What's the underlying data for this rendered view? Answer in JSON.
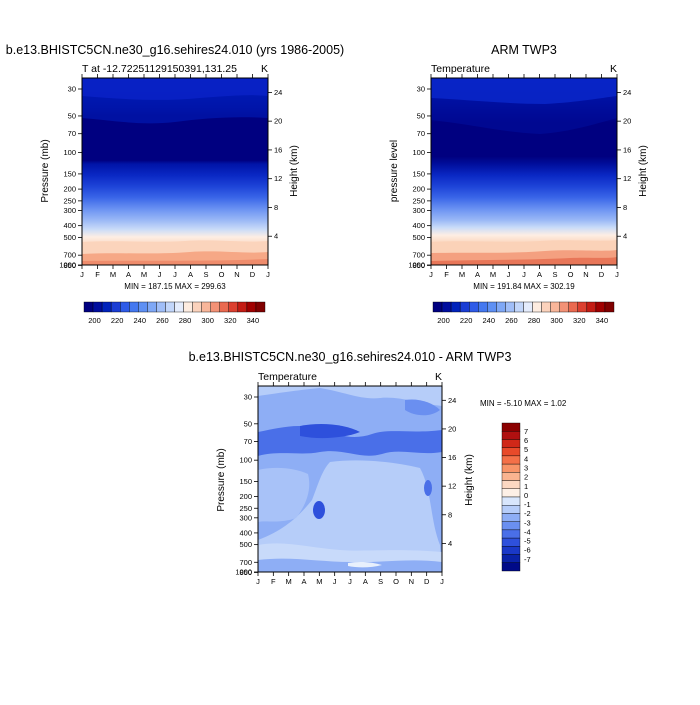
{
  "chart_data": [
    {
      "type": "heatmap",
      "title": "b.e13.BHISTC5CN.ne30_g16.sehires24.010 (yrs 1986-2005)",
      "subtitle_left": "T at -12.72251129150391,131.25",
      "subtitle_right": "K",
      "xlabel": "",
      "ylabel": "Pressure (mb)",
      "ylabel_right": "Height (km)",
      "x_ticks": [
        "J",
        "F",
        "M",
        "A",
        "M",
        "J",
        "J",
        "A",
        "S",
        "O",
        "N",
        "D",
        "J"
      ],
      "y_ticks": [
        "30",
        "50",
        "70",
        "100",
        "150",
        "200",
        "250",
        "300",
        "400",
        "500",
        "700",
        "850",
        "1000"
      ],
      "y_ticks_right": [
        "24",
        "20",
        "16",
        "12",
        "8",
        "4"
      ],
      "stats": "MIN = 187.15 MAX = 299.63",
      "colorbar": {
        "orientation": "horizontal",
        "labels": [
          "200",
          "220",
          "240",
          "260",
          "280",
          "300",
          "320",
          "340"
        ],
        "colors": [
          "#000080",
          "#000d9e",
          "#0022bb",
          "#1a3dd4",
          "#2e5be8",
          "#4478f0",
          "#5e90f4",
          "#7fa8f6",
          "#a0bef8",
          "#c2d6fa",
          "#e4ecfc",
          "#fdece0",
          "#fbd2bc",
          "#f8b69a",
          "#f39276",
          "#ea6a50",
          "#dc4030",
          "#c41c14",
          "#a00000",
          "#800000"
        ]
      }
    },
    {
      "type": "heatmap",
      "title": "ARM TWP3",
      "subtitle_left": "Temperature",
      "subtitle_right": "K",
      "xlabel": "",
      "ylabel": "pressure level",
      "ylabel_right": "Height (km)",
      "x_ticks": [
        "J",
        "F",
        "M",
        "A",
        "M",
        "J",
        "J",
        "A",
        "S",
        "O",
        "N",
        "D",
        "J"
      ],
      "y_ticks": [
        "30",
        "50",
        "70",
        "100",
        "150",
        "200",
        "250",
        "300",
        "400",
        "500",
        "700",
        "850",
        "1000"
      ],
      "y_ticks_right": [
        "24",
        "20",
        "16",
        "12",
        "8",
        "4"
      ],
      "stats": "MIN = 191.84 MAX = 302.19",
      "colorbar": {
        "orientation": "horizontal",
        "labels": [
          "200",
          "220",
          "240",
          "260",
          "280",
          "300",
          "320",
          "340"
        ],
        "colors": [
          "#000080",
          "#000d9e",
          "#0022bb",
          "#1a3dd4",
          "#2e5be8",
          "#4478f0",
          "#5e90f4",
          "#7fa8f6",
          "#a0bef8",
          "#c2d6fa",
          "#e4ecfc",
          "#fdece0",
          "#fbd2bc",
          "#f8b69a",
          "#f39276",
          "#ea6a50",
          "#dc4030",
          "#c41c14",
          "#a00000",
          "#800000"
        ]
      }
    },
    {
      "type": "heatmap",
      "title": "b.e13.BHISTC5CN.ne30_g16.sehires24.010 - ARM TWP3",
      "subtitle_left": "Temperature",
      "subtitle_right": "K",
      "xlabel": "",
      "ylabel": "Pressure (mb)",
      "ylabel_right": "Height (km)",
      "x_ticks": [
        "J",
        "F",
        "M",
        "A",
        "M",
        "J",
        "J",
        "A",
        "S",
        "O",
        "N",
        "D",
        "J"
      ],
      "y_ticks": [
        "30",
        "50",
        "70",
        "100",
        "150",
        "200",
        "250",
        "300",
        "400",
        "500",
        "700",
        "850",
        "1000"
      ],
      "y_ticks_right": [
        "24",
        "20",
        "16",
        "12",
        "8",
        "4"
      ],
      "stats": "MIN = -5.10 MAX =  1.02",
      "colorbar": {
        "orientation": "vertical",
        "labels": [
          "7",
          "6",
          "5",
          "4",
          "3",
          "2",
          "1",
          "0",
          "-1",
          "-2",
          "-3",
          "-4",
          "-5",
          "-6",
          "-7"
        ],
        "colors": [
          "#8b0000",
          "#b01010",
          "#d02818",
          "#e84a2a",
          "#f47048",
          "#f89468",
          "#fab490",
          "#fcd8c2",
          "#fdf0e6",
          "#d8e6fc",
          "#b6cdf9",
          "#8eaef5",
          "#6a8ff0",
          "#4a6fe8",
          "#2e50dc",
          "#1a38c8",
          "#0a22a8",
          "#000a88"
        ]
      }
    }
  ]
}
